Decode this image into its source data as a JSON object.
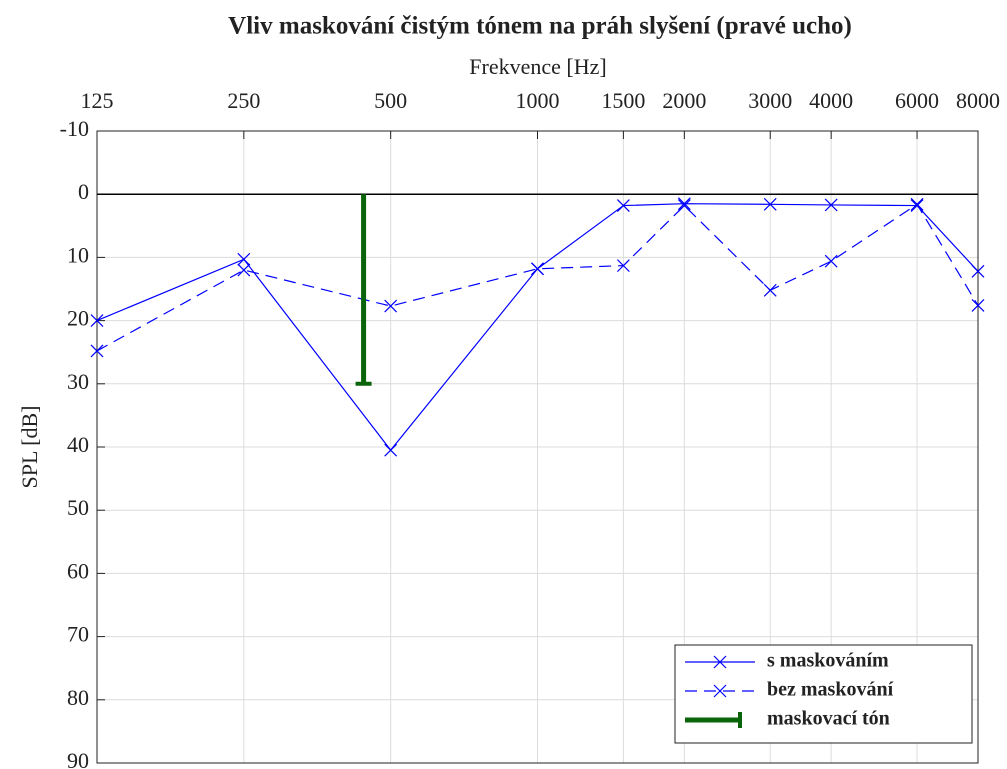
{
  "chart_data": {
    "type": "line",
    "title": "Vliv maskování čistým tónem na práh slyšení (pravé ucho)",
    "x_label": "Frekvence [Hz]",
    "y_label": "SPL [dB]",
    "x": [
      125,
      250,
      500,
      1000,
      1500,
      2000,
      3000,
      4000,
      6000,
      8000
    ],
    "series": [
      {
        "name": "s maskováním",
        "color": "#0000ff",
        "linestyle": "solid",
        "marker": "x",
        "x": [
          125,
          250,
          500,
          1000,
          1500,
          2000,
          3000,
          4000,
          6000,
          8000
        ],
        "values": [
          20,
          10.3,
          40.5,
          11.8,
          1.8,
          1.5,
          1.6,
          1.7,
          1.8,
          12.2
        ]
      },
      {
        "name": "bez maskování",
        "color": "#0000ff",
        "linestyle": "dashed",
        "marker": "x",
        "x": [
          125,
          250,
          500,
          1000,
          1500,
          2000,
          3000,
          4000,
          6000,
          8000
        ],
        "values": [
          24.8,
          12,
          17.7,
          11.8,
          11.3,
          1.8,
          15.2,
          10.6,
          1.6,
          17.6
        ]
      },
      {
        "name": "maskovací tón",
        "color": "#0a640a",
        "linestyle": "solid",
        "marker": "cap",
        "x": [
          440,
          440
        ],
        "values": [
          0,
          30
        ]
      }
    ],
    "xlim": [
      125,
      8000
    ],
    "xticks": [
      125,
      250,
      500,
      1000,
      1500,
      2000,
      3000,
      4000,
      6000,
      8000
    ],
    "x_scale": "log",
    "x_axis_position": "top",
    "ylim": [
      -10,
      90
    ],
    "yticks": [
      -10,
      0,
      10,
      20,
      30,
      40,
      50,
      60,
      70,
      80,
      90
    ],
    "y_reversed": true,
    "reference_line": 0,
    "grid": true,
    "legend": "lower right"
  }
}
